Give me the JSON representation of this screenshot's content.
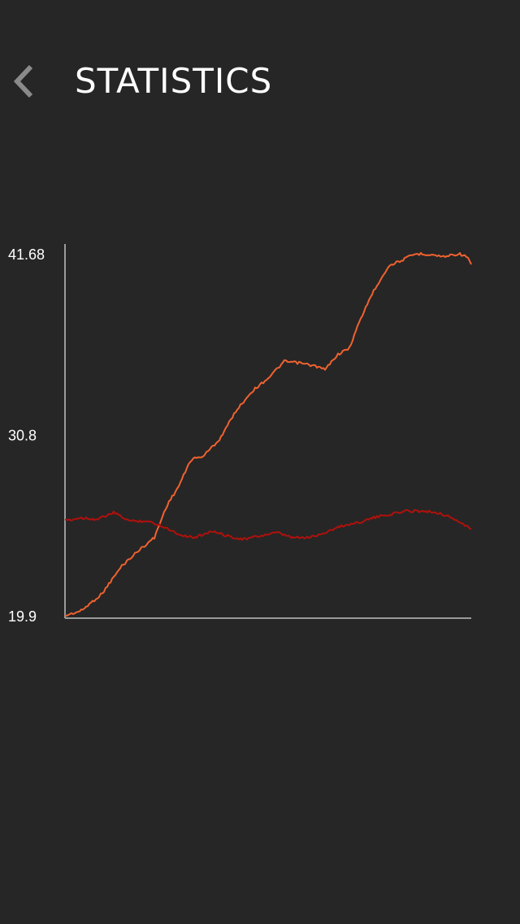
{
  "header": {
    "title": "STATISTICS",
    "back_icon": "chevron-left-icon"
  },
  "colors": {
    "background": "#262626",
    "axis": "#9a9a9a",
    "series_a": "#f0622f",
    "series_b": "#b0110c",
    "back_icon": "#8a8a8a"
  },
  "chart_data": {
    "type": "line",
    "ylim": [
      19.9,
      41.68
    ],
    "y_ticks": [
      "41.68",
      "30.8",
      "19.9"
    ],
    "y_tick_values": [
      41.68,
      30.8,
      19.9
    ],
    "xlim": [
      0,
      100
    ],
    "series": [
      {
        "color": "#f0622f",
        "x": [
          0,
          4,
          9,
          14,
          18,
          22,
          25,
          28,
          31,
          34,
          38,
          42,
          46,
          50,
          54,
          58,
          62,
          64,
          67,
          70,
          72,
          75,
          78,
          80,
          83,
          86,
          88,
          91,
          93,
          95,
          97,
          99,
          100
        ],
        "y": [
          19.9,
          20.2,
          21.2,
          22.9,
          23.8,
          24.6,
          26.5,
          27.7,
          29.3,
          29.5,
          30.5,
          32.2,
          33.4,
          34.2,
          35.2,
          35.1,
          34.9,
          34.7,
          35.6,
          36.0,
          37.3,
          39.0,
          40.3,
          41.0,
          41.3,
          41.65,
          41.68,
          41.6,
          41.5,
          41.6,
          41.68,
          41.5,
          41.0
        ]
      },
      {
        "color": "#b0110c",
        "x": [
          0,
          4,
          8,
          12,
          16,
          20,
          24,
          28,
          32,
          36,
          40,
          44,
          48,
          52,
          56,
          60,
          64,
          68,
          72,
          76,
          80,
          84,
          88,
          92,
          96,
          100
        ],
        "y": [
          25.6,
          25.8,
          25.7,
          26.1,
          25.6,
          25.6,
          25.3,
          24.8,
          24.6,
          25.0,
          24.7,
          24.5,
          24.7,
          24.9,
          24.6,
          24.6,
          24.9,
          25.3,
          25.5,
          25.8,
          26.0,
          26.2,
          26.2,
          26.1,
          25.7,
          25.1
        ]
      }
    ]
  }
}
